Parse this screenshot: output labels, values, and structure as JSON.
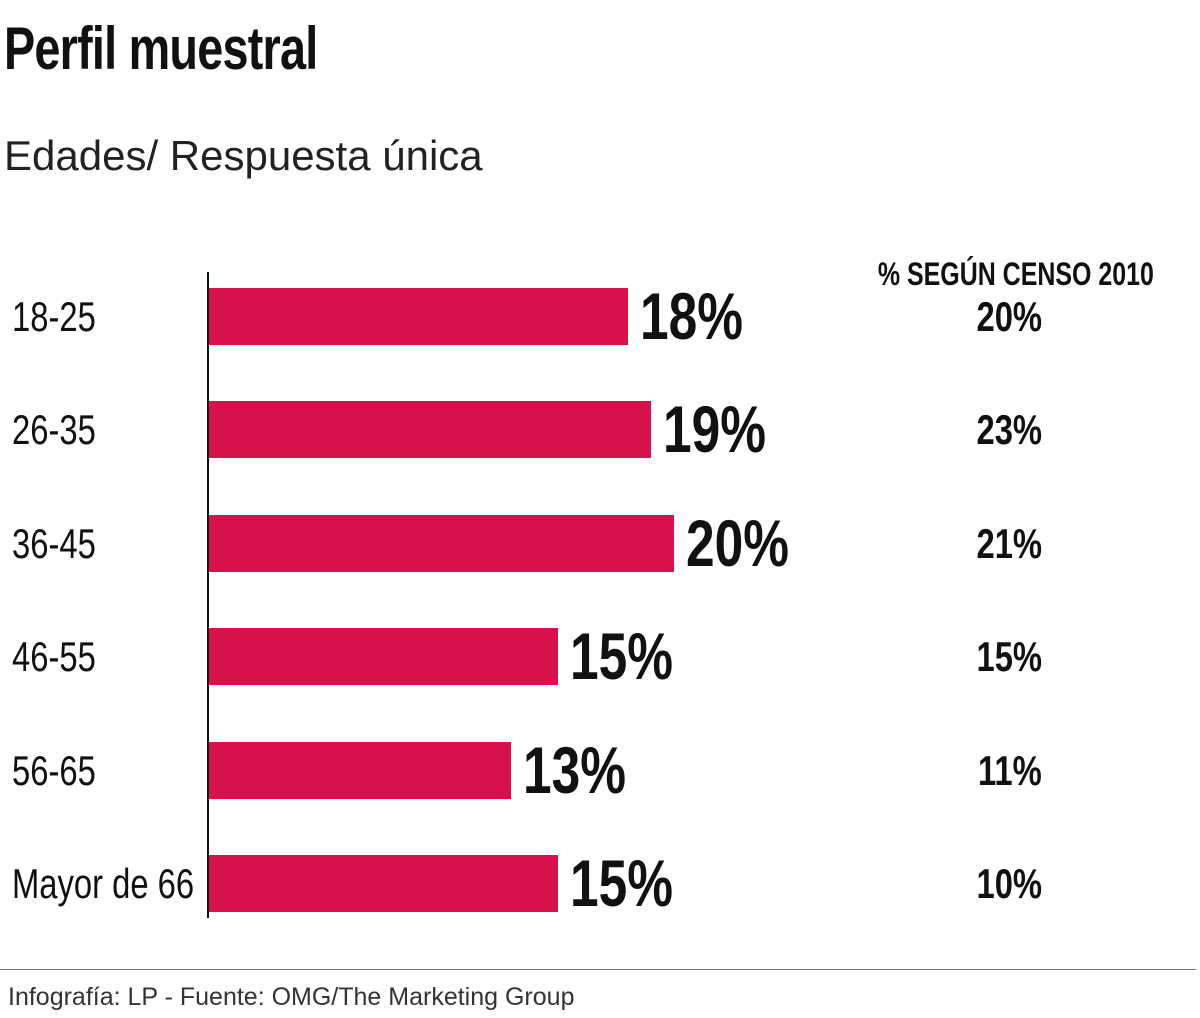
{
  "chart_data": {
    "type": "bar",
    "orientation": "horizontal",
    "title": "Perfil muestral",
    "subtitle": "Edades/ Respuesta única",
    "categories": [
      "18-25",
      "26-35",
      "36-45",
      "46-55",
      "56-65",
      "Mayor de 66"
    ],
    "series": [
      {
        "values": [
          18,
          19,
          20,
          15,
          13,
          15
        ],
        "labels": [
          "18%",
          "19%",
          "20%",
          "15%",
          "13%",
          "15%"
        ],
        "color": "#D6114B"
      }
    ],
    "census": {
      "header": "% SEGÚN CENSO 2010",
      "values": [
        20,
        23,
        21,
        15,
        11,
        10
      ],
      "labels": [
        "20%",
        "23%",
        "21%",
        "15%",
        "11%",
        "10%"
      ]
    },
    "xlim": [
      0,
      25
    ],
    "grid": false,
    "footer": "Infografía: LP - Fuente: OMG/The Marketing Group"
  }
}
